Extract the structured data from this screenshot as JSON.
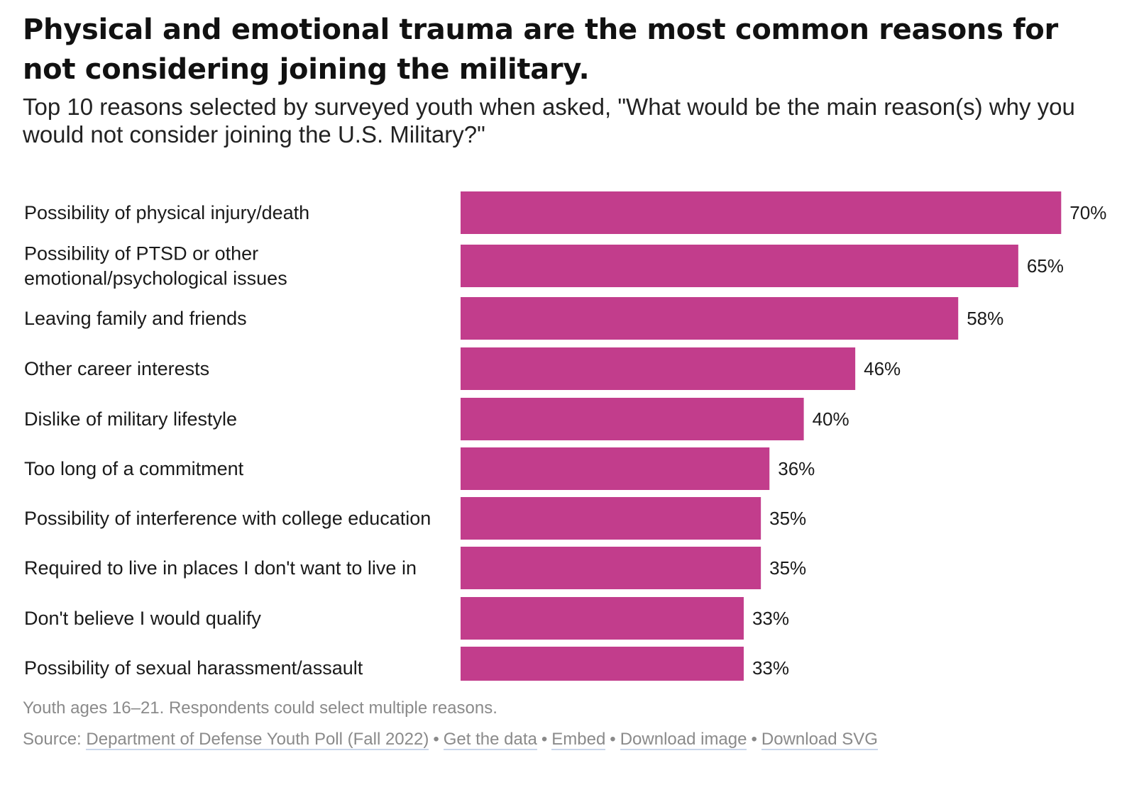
{
  "header": {
    "title": "Physical and emotional trauma are the most common reasons for not considering joining the military.",
    "subtitle": "Top 10 reasons selected by surveyed youth when asked, \"What would be the main reason(s) why you would not consider joining the U.S. Military?\""
  },
  "chart_data": {
    "type": "bar",
    "orientation": "horizontal",
    "categories": [
      [
        "Possibility of physical injury/death"
      ],
      [
        "Possibility of PTSD or other",
        "emotional/psychological issues"
      ],
      [
        "Leaving family and friends"
      ],
      [
        "Other career interests"
      ],
      [
        "Dislike of military lifestyle"
      ],
      [
        "Too long of a commitment"
      ],
      [
        "Possibility of interference with college education"
      ],
      [
        "Required to live in places I don't want to live in"
      ],
      [
        "Don't believe I would qualify"
      ],
      [
        "Possibility of sexual harassment/assault"
      ]
    ],
    "values": [
      70,
      65,
      58,
      46,
      40,
      36,
      35,
      35,
      33,
      33
    ],
    "value_labels": [
      "70%",
      "65%",
      "58%",
      "46%",
      "40%",
      "36%",
      "35%",
      "35%",
      "33%",
      "33%"
    ],
    "unit": "%",
    "bar_color": "#c23d8c",
    "xlim": [
      0,
      100
    ],
    "grid": false,
    "legend": "none"
  },
  "footer": {
    "note": "Youth ages 16–21. Respondents could select multiple reasons.",
    "source_prefix": "Source:",
    "source_link": "Department of Defense Youth Poll (Fall 2022)",
    "separator": "•",
    "links": [
      "Get the data",
      "Embed",
      "Download image",
      "Download SVG"
    ]
  }
}
